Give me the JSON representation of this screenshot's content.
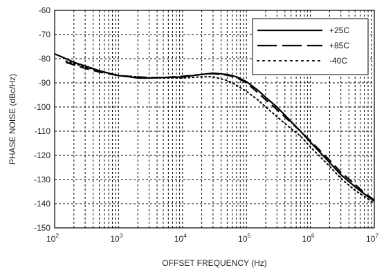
{
  "chart_data": {
    "type": "line",
    "title": "",
    "xlabel": "OFFSET FREQUENCY (Hz)",
    "ylabel": "PHASE NOISE (dBc/Hz)",
    "x_scale": "log",
    "xlim": [
      100,
      10000000
    ],
    "ylim": [
      -150,
      -60
    ],
    "x_ticks": [
      {
        "base": "10",
        "exp": "2",
        "value": 100
      },
      {
        "base": "10",
        "exp": "3",
        "value": 1000
      },
      {
        "base": "10",
        "exp": "4",
        "value": 10000
      },
      {
        "base": "10",
        "exp": "5",
        "value": 100000
      },
      {
        "base": "10",
        "exp": "6",
        "value": 1000000
      },
      {
        "base": "10",
        "exp": "7",
        "value": 10000000
      }
    ],
    "y_ticks": [
      "-60",
      "-70",
      "-80",
      "-90",
      "-100",
      "-110",
      "-120",
      "-130",
      "-140",
      "-150"
    ],
    "grid": "dotted, minor log grid on x",
    "legend": "top-right",
    "series": [
      {
        "name": "+25C",
        "style": "solid",
        "points": [
          [
            100,
            -78
          ],
          [
            150,
            -80
          ],
          [
            200,
            -81.5
          ],
          [
            300,
            -83
          ],
          [
            500,
            -85
          ],
          [
            700,
            -86
          ],
          [
            1000,
            -87
          ],
          [
            1500,
            -87.5
          ],
          [
            2000,
            -88
          ],
          [
            3000,
            -88
          ],
          [
            5000,
            -87.8
          ],
          [
            10000,
            -87.5
          ],
          [
            20000,
            -86.5
          ],
          [
            30000,
            -86
          ],
          [
            50000,
            -86.5
          ],
          [
            70000,
            -87.5
          ],
          [
            100000,
            -89.5
          ],
          [
            150000,
            -93
          ],
          [
            200000,
            -96
          ],
          [
            300000,
            -100
          ],
          [
            500000,
            -106
          ],
          [
            700000,
            -110
          ],
          [
            1000000,
            -114.5
          ],
          [
            2000000,
            -123
          ],
          [
            3000000,
            -128
          ],
          [
            5000000,
            -133
          ],
          [
            7000000,
            -136
          ],
          [
            10000000,
            -139
          ]
        ]
      },
      {
        "name": "+85C",
        "style": "dashed",
        "points": [
          [
            150,
            -81.5
          ],
          [
            200,
            -82.5
          ],
          [
            300,
            -84
          ],
          [
            500,
            -85.5
          ],
          [
            1000,
            -87
          ],
          [
            2000,
            -87.5
          ],
          [
            3000,
            -87.8
          ],
          [
            5000,
            -87.8
          ],
          [
            10000,
            -87.3
          ],
          [
            20000,
            -86.5
          ],
          [
            30000,
            -86.2
          ],
          [
            50000,
            -86.8
          ],
          [
            70000,
            -87.8
          ],
          [
            100000,
            -90
          ],
          [
            150000,
            -94
          ],
          [
            200000,
            -97
          ],
          [
            300000,
            -101
          ],
          [
            500000,
            -106.5
          ],
          [
            700000,
            -110
          ],
          [
            1000000,
            -114
          ],
          [
            2000000,
            -122
          ],
          [
            3000000,
            -127
          ],
          [
            5000000,
            -132
          ],
          [
            7000000,
            -135.5
          ],
          [
            10000000,
            -138.5
          ]
        ]
      },
      {
        "name": "-40C",
        "style": "dotted",
        "points": [
          [
            150,
            -81
          ],
          [
            200,
            -82
          ],
          [
            300,
            -83.5
          ],
          [
            500,
            -85
          ],
          [
            1000,
            -87
          ],
          [
            2000,
            -87.5
          ],
          [
            3000,
            -88
          ],
          [
            5000,
            -88
          ],
          [
            10000,
            -88
          ],
          [
            20000,
            -87.5
          ],
          [
            30000,
            -87.5
          ],
          [
            50000,
            -89
          ],
          [
            70000,
            -91
          ],
          [
            100000,
            -93.5
          ],
          [
            150000,
            -97
          ],
          [
            200000,
            -100
          ],
          [
            300000,
            -104
          ],
          [
            500000,
            -109
          ],
          [
            700000,
            -112
          ],
          [
            1000000,
            -116.5
          ],
          [
            2000000,
            -124.5
          ],
          [
            3000000,
            -129.5
          ],
          [
            5000000,
            -134.5
          ],
          [
            7000000,
            -137
          ],
          [
            10000000,
            -140
          ]
        ]
      }
    ]
  },
  "colors": {
    "line": "#000000",
    "frame": "#000000",
    "grid": "#000000"
  }
}
